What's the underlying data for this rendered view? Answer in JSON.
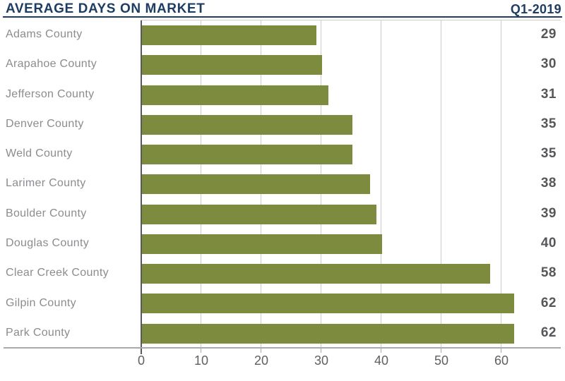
{
  "header": {
    "title": "AVERAGE DAYS ON MARKET",
    "period": "Q1-2019"
  },
  "chart_data": {
    "type": "bar",
    "orientation": "horizontal",
    "title": "AVERAGE DAYS ON MARKET",
    "subtitle": "Q1-2019",
    "categories": [
      "Adams County",
      "Arapahoe County",
      "Jefferson County",
      "Denver County",
      "Weld County",
      "Larimer County",
      "Boulder County",
      "Douglas County",
      "Clear Creek County",
      "Gilpin County",
      "Park County"
    ],
    "values": [
      29,
      30,
      31,
      35,
      35,
      38,
      39,
      40,
      58,
      62,
      62
    ],
    "xlabel": "",
    "ylabel": "",
    "xlim": [
      0,
      70
    ],
    "xticks": [
      0,
      10,
      20,
      30,
      40,
      50,
      60
    ],
    "grid": true,
    "legend": false,
    "value_labels_position": "right",
    "colors": {
      "bar": "#7d8b3e",
      "title_navy": "#1e3d63",
      "category_label": "#8a8c8f",
      "value_label": "#565759",
      "tick_label": "#5f6062",
      "gridline": "#cccccc",
      "axis_line": "#a7a9ac",
      "zero_line": "#58595b"
    }
  }
}
